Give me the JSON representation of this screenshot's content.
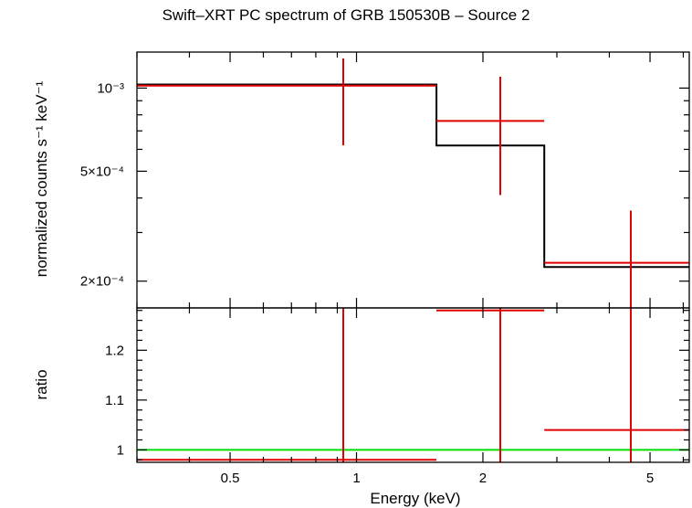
{
  "chart_data": {
    "type": "line",
    "title": "Swift–XRT PC spectrum of GRB 150530B – Source 2",
    "xlabel": "Energy (keV)",
    "x_scale": "log",
    "xlim": [
      0.3,
      6.2
    ],
    "x_ticks": [
      0.5,
      1,
      2,
      5
    ],
    "x_tick_labels": [
      "0.5",
      "1",
      "2",
      "5"
    ],
    "panels": [
      {
        "name": "spectrum",
        "ylabel": "normalized counts s⁻¹ keV⁻¹",
        "y_scale": "log",
        "ylim": [
          0.00016,
          0.00135
        ],
        "y_ticks": [
          0.0002,
          0.0005,
          0.001
        ],
        "y_tick_labels": [
          "2×10⁻⁴",
          "5×10⁻⁴",
          "10⁻³"
        ],
        "data_points": [
          {
            "x": 0.93,
            "x_low": 0.3,
            "x_high": 1.55,
            "y": 0.00102,
            "y_low": 0.00062,
            "y_high": 0.00128
          },
          {
            "x": 2.2,
            "x_low": 1.55,
            "x_high": 2.8,
            "y": 0.00076,
            "y_low": 0.00041,
            "y_high": 0.0011
          },
          {
            "x": 4.5,
            "x_low": 2.8,
            "x_high": 6.2,
            "y": 0.000233,
            "y_low": 0.00016,
            "y_high": 0.00036
          }
        ],
        "model": [
          {
            "x_low": 0.3,
            "x_high": 1.55,
            "y": 0.00103
          },
          {
            "x_low": 1.55,
            "x_high": 2.8,
            "y": 0.00062
          },
          {
            "x_low": 2.8,
            "x_high": 6.2,
            "y": 0.000225
          }
        ]
      },
      {
        "name": "ratio",
        "ylabel": "ratio",
        "y_scale": "linear",
        "ylim": [
          0.975,
          1.285
        ],
        "y_ticks": [
          1.0,
          1.1,
          1.2
        ],
        "y_tick_labels": [
          "1",
          "1.1",
          "1.2"
        ],
        "reference_line": 1.0,
        "data_points": [
          {
            "x": 0.93,
            "x_low": 0.3,
            "x_high": 1.55,
            "y": 0.98,
            "y_low": 0.975,
            "y_high": 1.285
          },
          {
            "x": 2.2,
            "x_low": 1.55,
            "x_high": 2.8,
            "y": 1.28,
            "y_low": 0.975,
            "y_high": 1.285
          },
          {
            "x": 4.5,
            "x_low": 2.8,
            "x_high": 6.2,
            "y": 1.04,
            "y_low": 0.975,
            "y_high": 1.285
          }
        ]
      }
    ],
    "colors": {
      "data": "#e00000",
      "model": "#000000",
      "reference": "#00dd00"
    }
  }
}
